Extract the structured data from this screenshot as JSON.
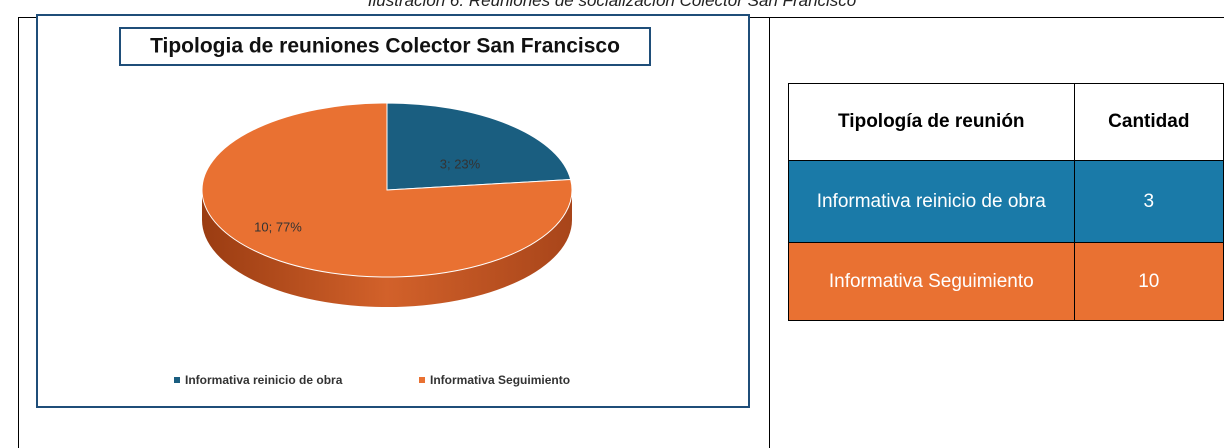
{
  "caption": "Ilustración 6. Reuniones de socialización Colector San Francisco",
  "chart_data": {
    "type": "pie",
    "title": "Tipologia de reuniones Colector San Francisco",
    "categories": [
      "Informativa reinicio de obra",
      "Informativa Seguimiento"
    ],
    "values": [
      3,
      10
    ],
    "value_labels": [
      "3; 23%",
      "10; 77%"
    ],
    "colors": [
      "#1a5e80",
      "#e97132"
    ],
    "legend": "bottom"
  },
  "table": {
    "headers": [
      "Tipología de reunión",
      "Cantidad"
    ],
    "rows": [
      [
        "Informativa reinicio de obra",
        3
      ],
      [
        "Informativa Seguimiento",
        10
      ]
    ]
  }
}
